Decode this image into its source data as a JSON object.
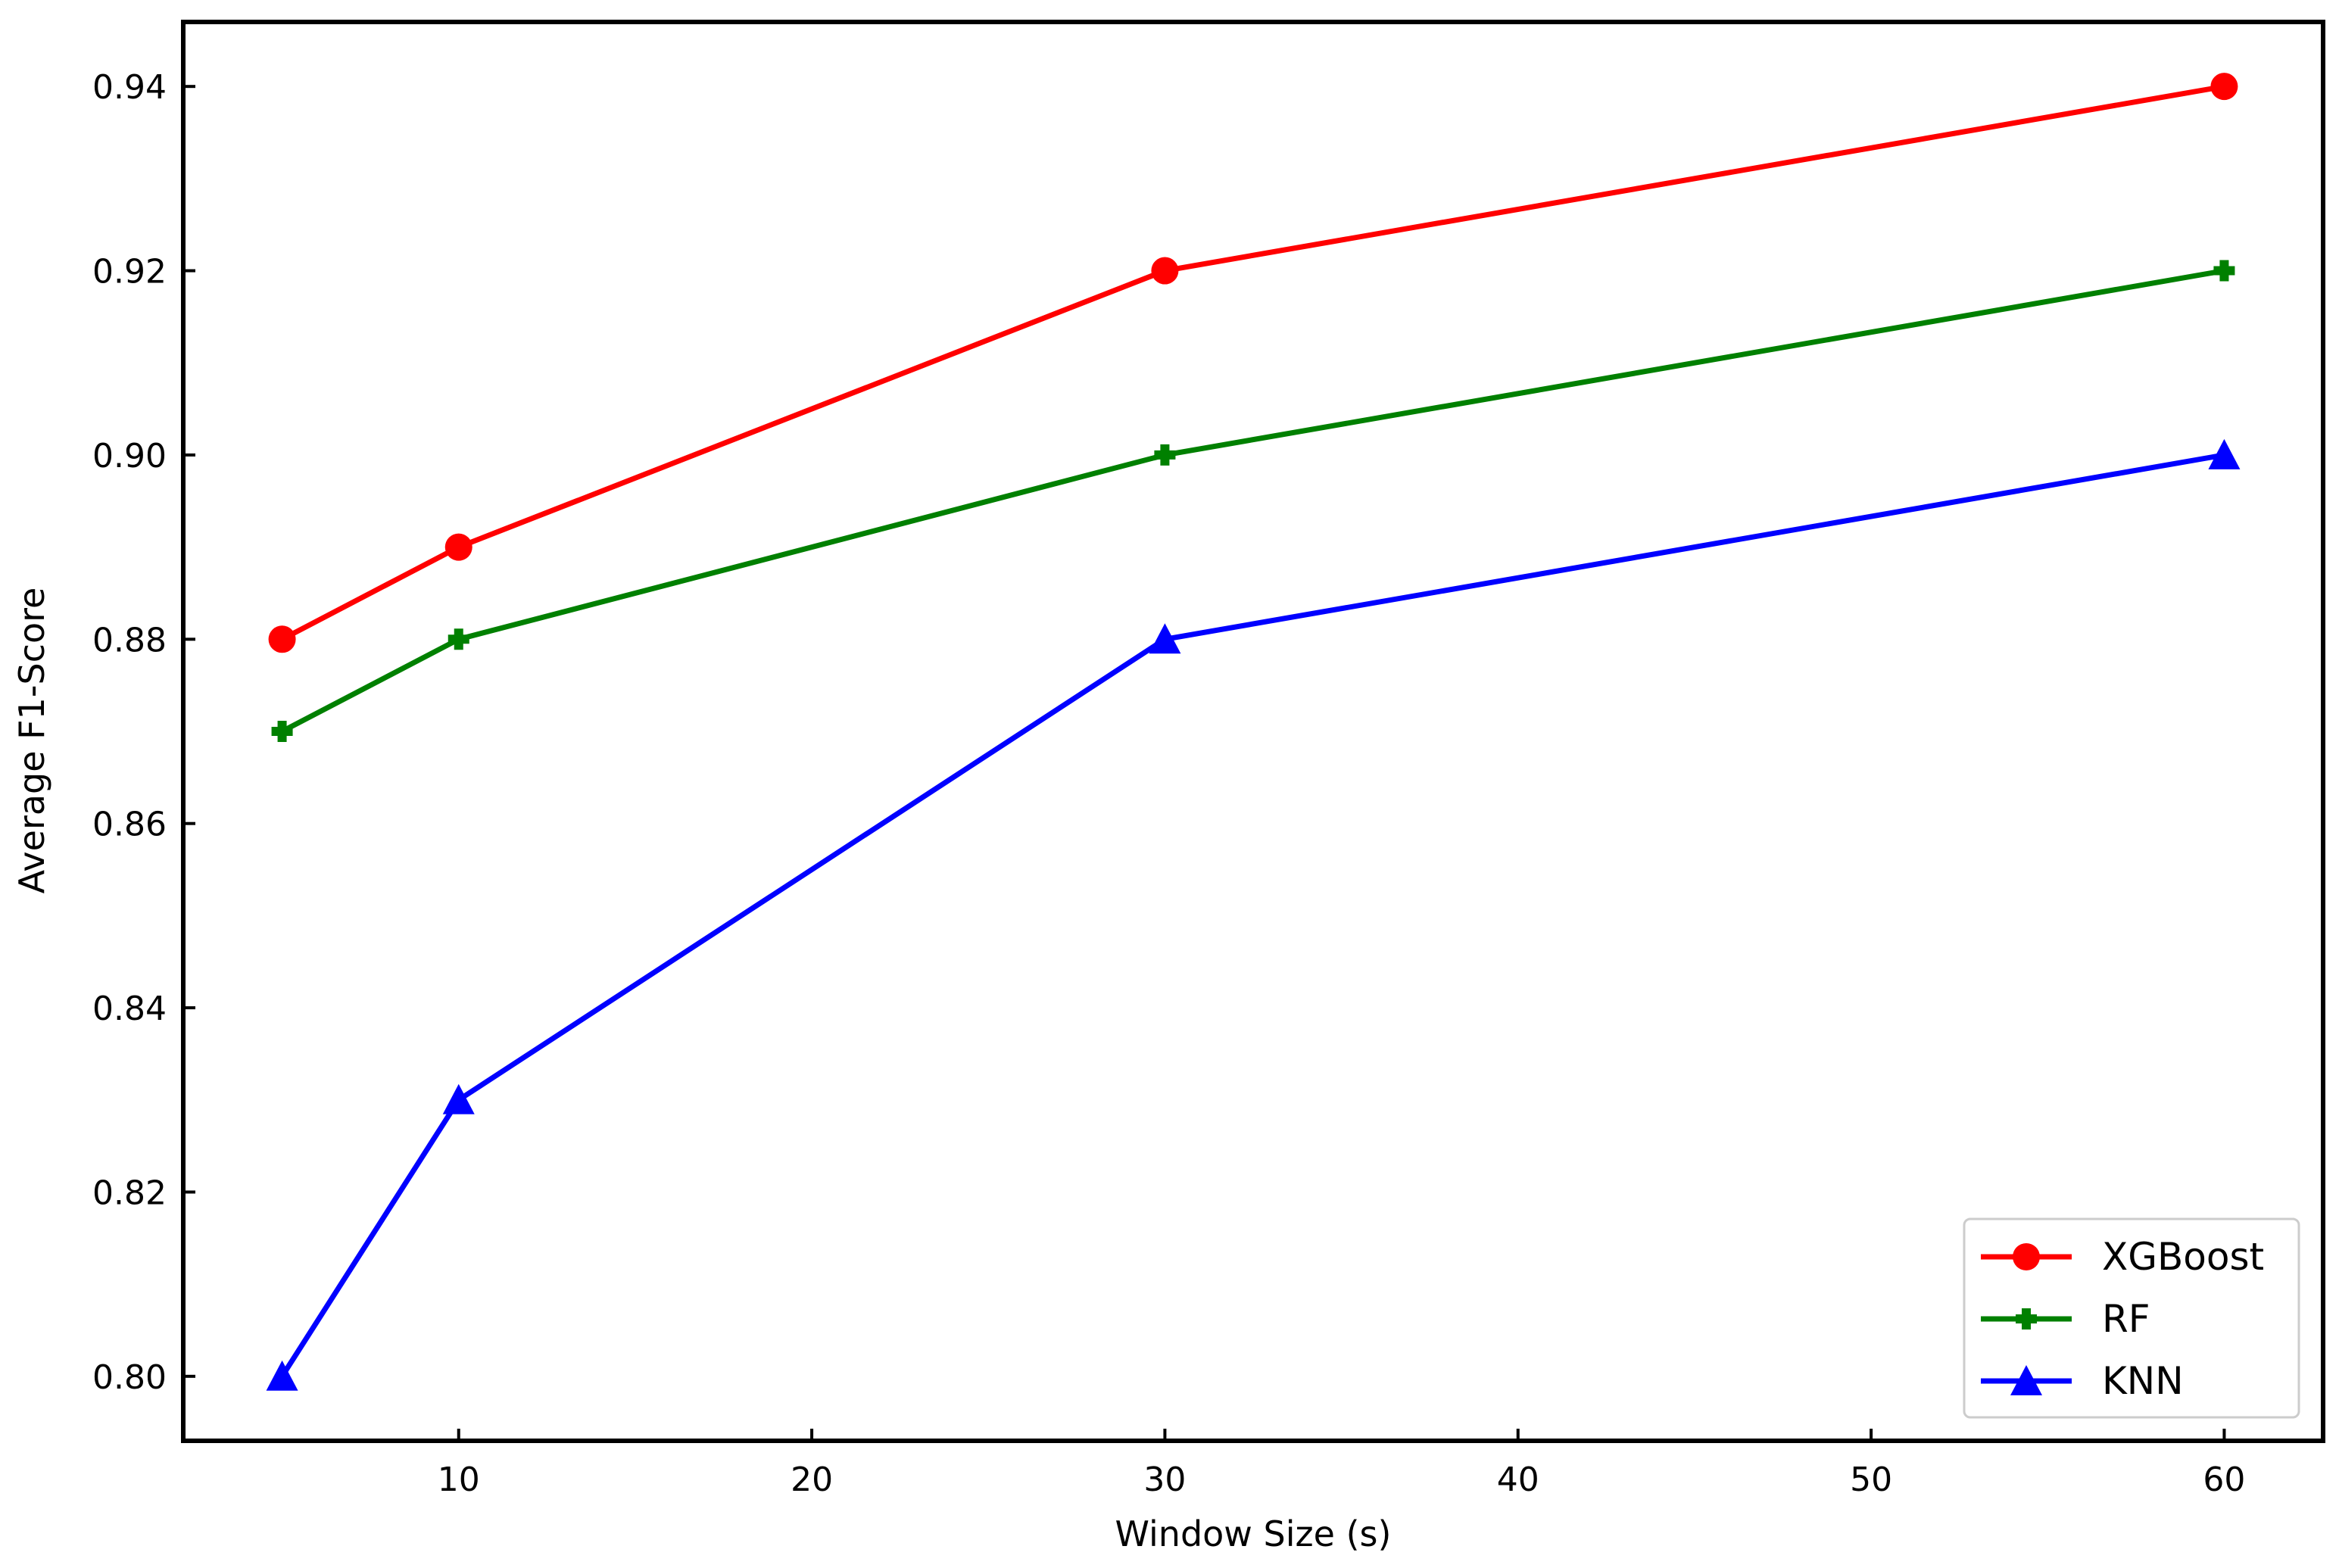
{
  "chart_data": {
    "type": "line",
    "title": "",
    "xlabel": "Window Size (s)",
    "ylabel": "Average F1-Score",
    "xlim": [
      2.2,
      62.8
    ],
    "ylim": [
      0.793,
      0.947
    ],
    "xticks": [
      10,
      20,
      30,
      40,
      50,
      60
    ],
    "yticks": [
      0.8,
      0.82,
      0.84,
      0.86,
      0.88,
      0.9,
      0.92,
      0.94
    ],
    "grid": false,
    "legend_position": "bottom-right",
    "x": [
      5,
      10,
      30,
      60
    ],
    "series": [
      {
        "name": "XGBoost",
        "values": [
          0.88,
          0.89,
          0.92,
          0.94
        ],
        "color": "#ff0000",
        "marker": "circle"
      },
      {
        "name": "RF",
        "values": [
          0.87,
          0.88,
          0.9,
          0.92
        ],
        "color": "#008000",
        "marker": "plus-filled"
      },
      {
        "name": "KNN",
        "values": [
          0.8,
          0.83,
          0.88,
          0.9
        ],
        "color": "#0000ff",
        "marker": "triangle-up"
      }
    ]
  }
}
